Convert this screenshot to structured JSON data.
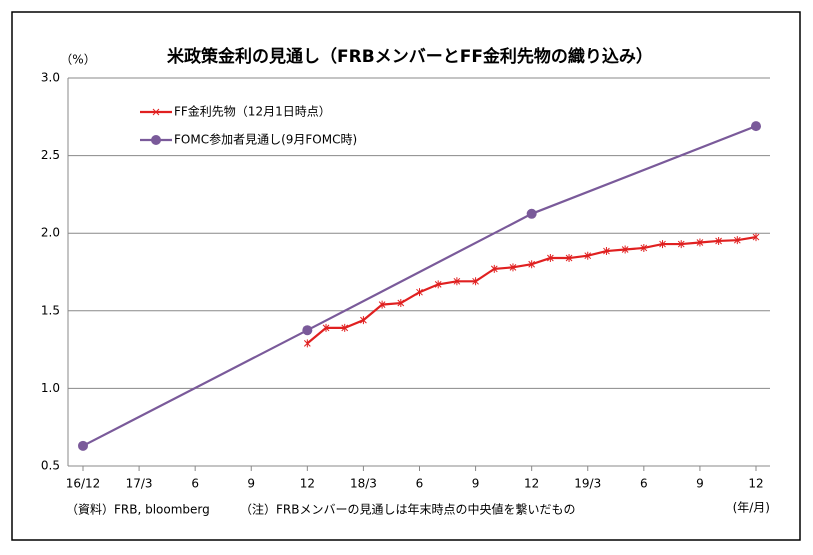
{
  "chart_data": {
    "type": "line",
    "title": "米政策金利の見通し（FRBメンバーとFF金利先物の織り込み）",
    "y_unit_label": "（%）",
    "x_unit_label": "(年/月)",
    "source": "（資料）FRB, bloomberg",
    "note": "（注）FRBメンバーの見通しは年末時点の中央値を繋いだもの",
    "categories": [
      "16/12",
      null,
      null,
      "17/3",
      null,
      null,
      "6",
      null,
      null,
      "9",
      null,
      null,
      "12",
      null,
      null,
      "18/3",
      null,
      null,
      "6",
      null,
      null,
      "9",
      null,
      null,
      "12",
      null,
      null,
      "19/3",
      null,
      null,
      "6",
      null,
      null,
      "9",
      null,
      null,
      "12"
    ],
    "series": [
      {
        "name": "FF金利先物（12月1日時点）",
        "color": "#e02020",
        "marker": "asterisk",
        "span_gaps": false,
        "values": [
          null,
          null,
          null,
          null,
          null,
          null,
          null,
          null,
          null,
          null,
          null,
          null,
          1.29,
          1.39,
          1.39,
          1.44,
          1.54,
          1.55,
          1.62,
          1.67,
          1.69,
          1.69,
          1.77,
          1.78,
          1.8,
          1.84,
          1.84,
          1.855,
          1.885,
          1.895,
          1.905,
          1.93,
          1.93,
          1.94,
          1.95,
          1.955,
          1.975
        ]
      },
      {
        "name": "FOMC参加者見通し(9月FOMC時)",
        "color": "#7a5a9a",
        "marker": "circle",
        "span_gaps": true,
        "values": [
          0.63,
          null,
          null,
          null,
          null,
          null,
          null,
          null,
          null,
          null,
          null,
          null,
          1.375,
          null,
          null,
          null,
          null,
          null,
          null,
          null,
          null,
          null,
          null,
          null,
          2.125,
          null,
          null,
          null,
          null,
          null,
          null,
          null,
          null,
          null,
          null,
          null,
          2.69
        ]
      }
    ],
    "ylim": [
      0.5,
      3.0
    ],
    "yticks": [
      {
        "value": 0.5,
        "label": "0.5"
      },
      {
        "value": 1,
        "label": "1.0"
      },
      {
        "value": 1.5,
        "label": "1.5"
      },
      {
        "value": 2,
        "label": "2.0"
      },
      {
        "value": 2.5,
        "label": "2.5"
      },
      {
        "value": 3,
        "label": "3.0"
      }
    ],
    "grid": true
  }
}
